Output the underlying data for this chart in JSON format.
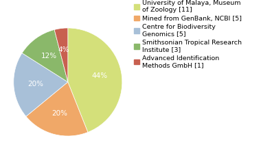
{
  "legend_labels": [
    "University of Malaya, Museum\nof Zoology [11]",
    "Mined from GenBank, NCBI [5]",
    "Centre for Biodiversity\nGenomics [5]",
    "Smithsonian Tropical Research\nInstitute [3]",
    "Advanced Identification\nMethods GmbH [1]"
  ],
  "values": [
    11,
    5,
    5,
    3,
    1
  ],
  "colors": [
    "#d4e07a",
    "#f0a868",
    "#a8c0d8",
    "#8ab86a",
    "#c86050"
  ],
  "pct_labels": [
    "44%",
    "20%",
    "20%",
    "12%",
    "4%"
  ],
  "text_color": "#ffffff",
  "font_size": 7.5,
  "legend_font_size": 6.8,
  "startangle": 90
}
